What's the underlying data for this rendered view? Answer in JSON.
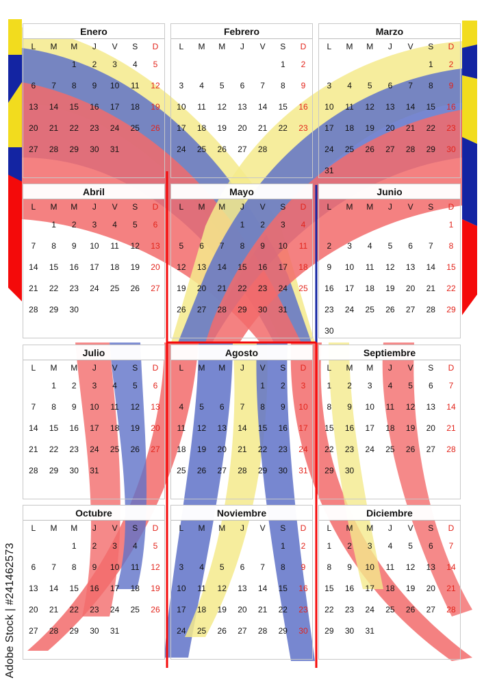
{
  "colors": {
    "yellow": "#f4ea8c",
    "blue": "#5f72c8",
    "red": "#f26b6b",
    "yellow_strong": "#f2dc1e",
    "blue_strong": "#1324a2",
    "red_strong": "#f40a0a"
  },
  "weekdays": [
    "L",
    "M",
    "M",
    "J",
    "V",
    "S",
    "D"
  ],
  "months": [
    {
      "name": "Enero",
      "offset": 2,
      "days": 31
    },
    {
      "name": "Febrero",
      "offset": 5,
      "days": 28
    },
    {
      "name": "Marzo",
      "offset": 5,
      "days": 31
    },
    {
      "name": "Abril",
      "offset": 1,
      "days": 30
    },
    {
      "name": "Mayo",
      "offset": 3,
      "days": 31
    },
    {
      "name": "Junio",
      "offset": 6,
      "days": 30
    },
    {
      "name": "Julio",
      "offset": 1,
      "days": 31
    },
    {
      "name": "Agosto",
      "offset": 4,
      "days": 31
    },
    {
      "name": "Septiembre",
      "offset": 0,
      "days": 30
    },
    {
      "name": "Octubre",
      "offset": 2,
      "days": 31
    },
    {
      "name": "Noviembre",
      "offset": 5,
      "days": 30
    },
    {
      "name": "Diciembre",
      "offset": 0,
      "days": 31
    }
  ],
  "watermark": "Adobe Stock | #241462573"
}
